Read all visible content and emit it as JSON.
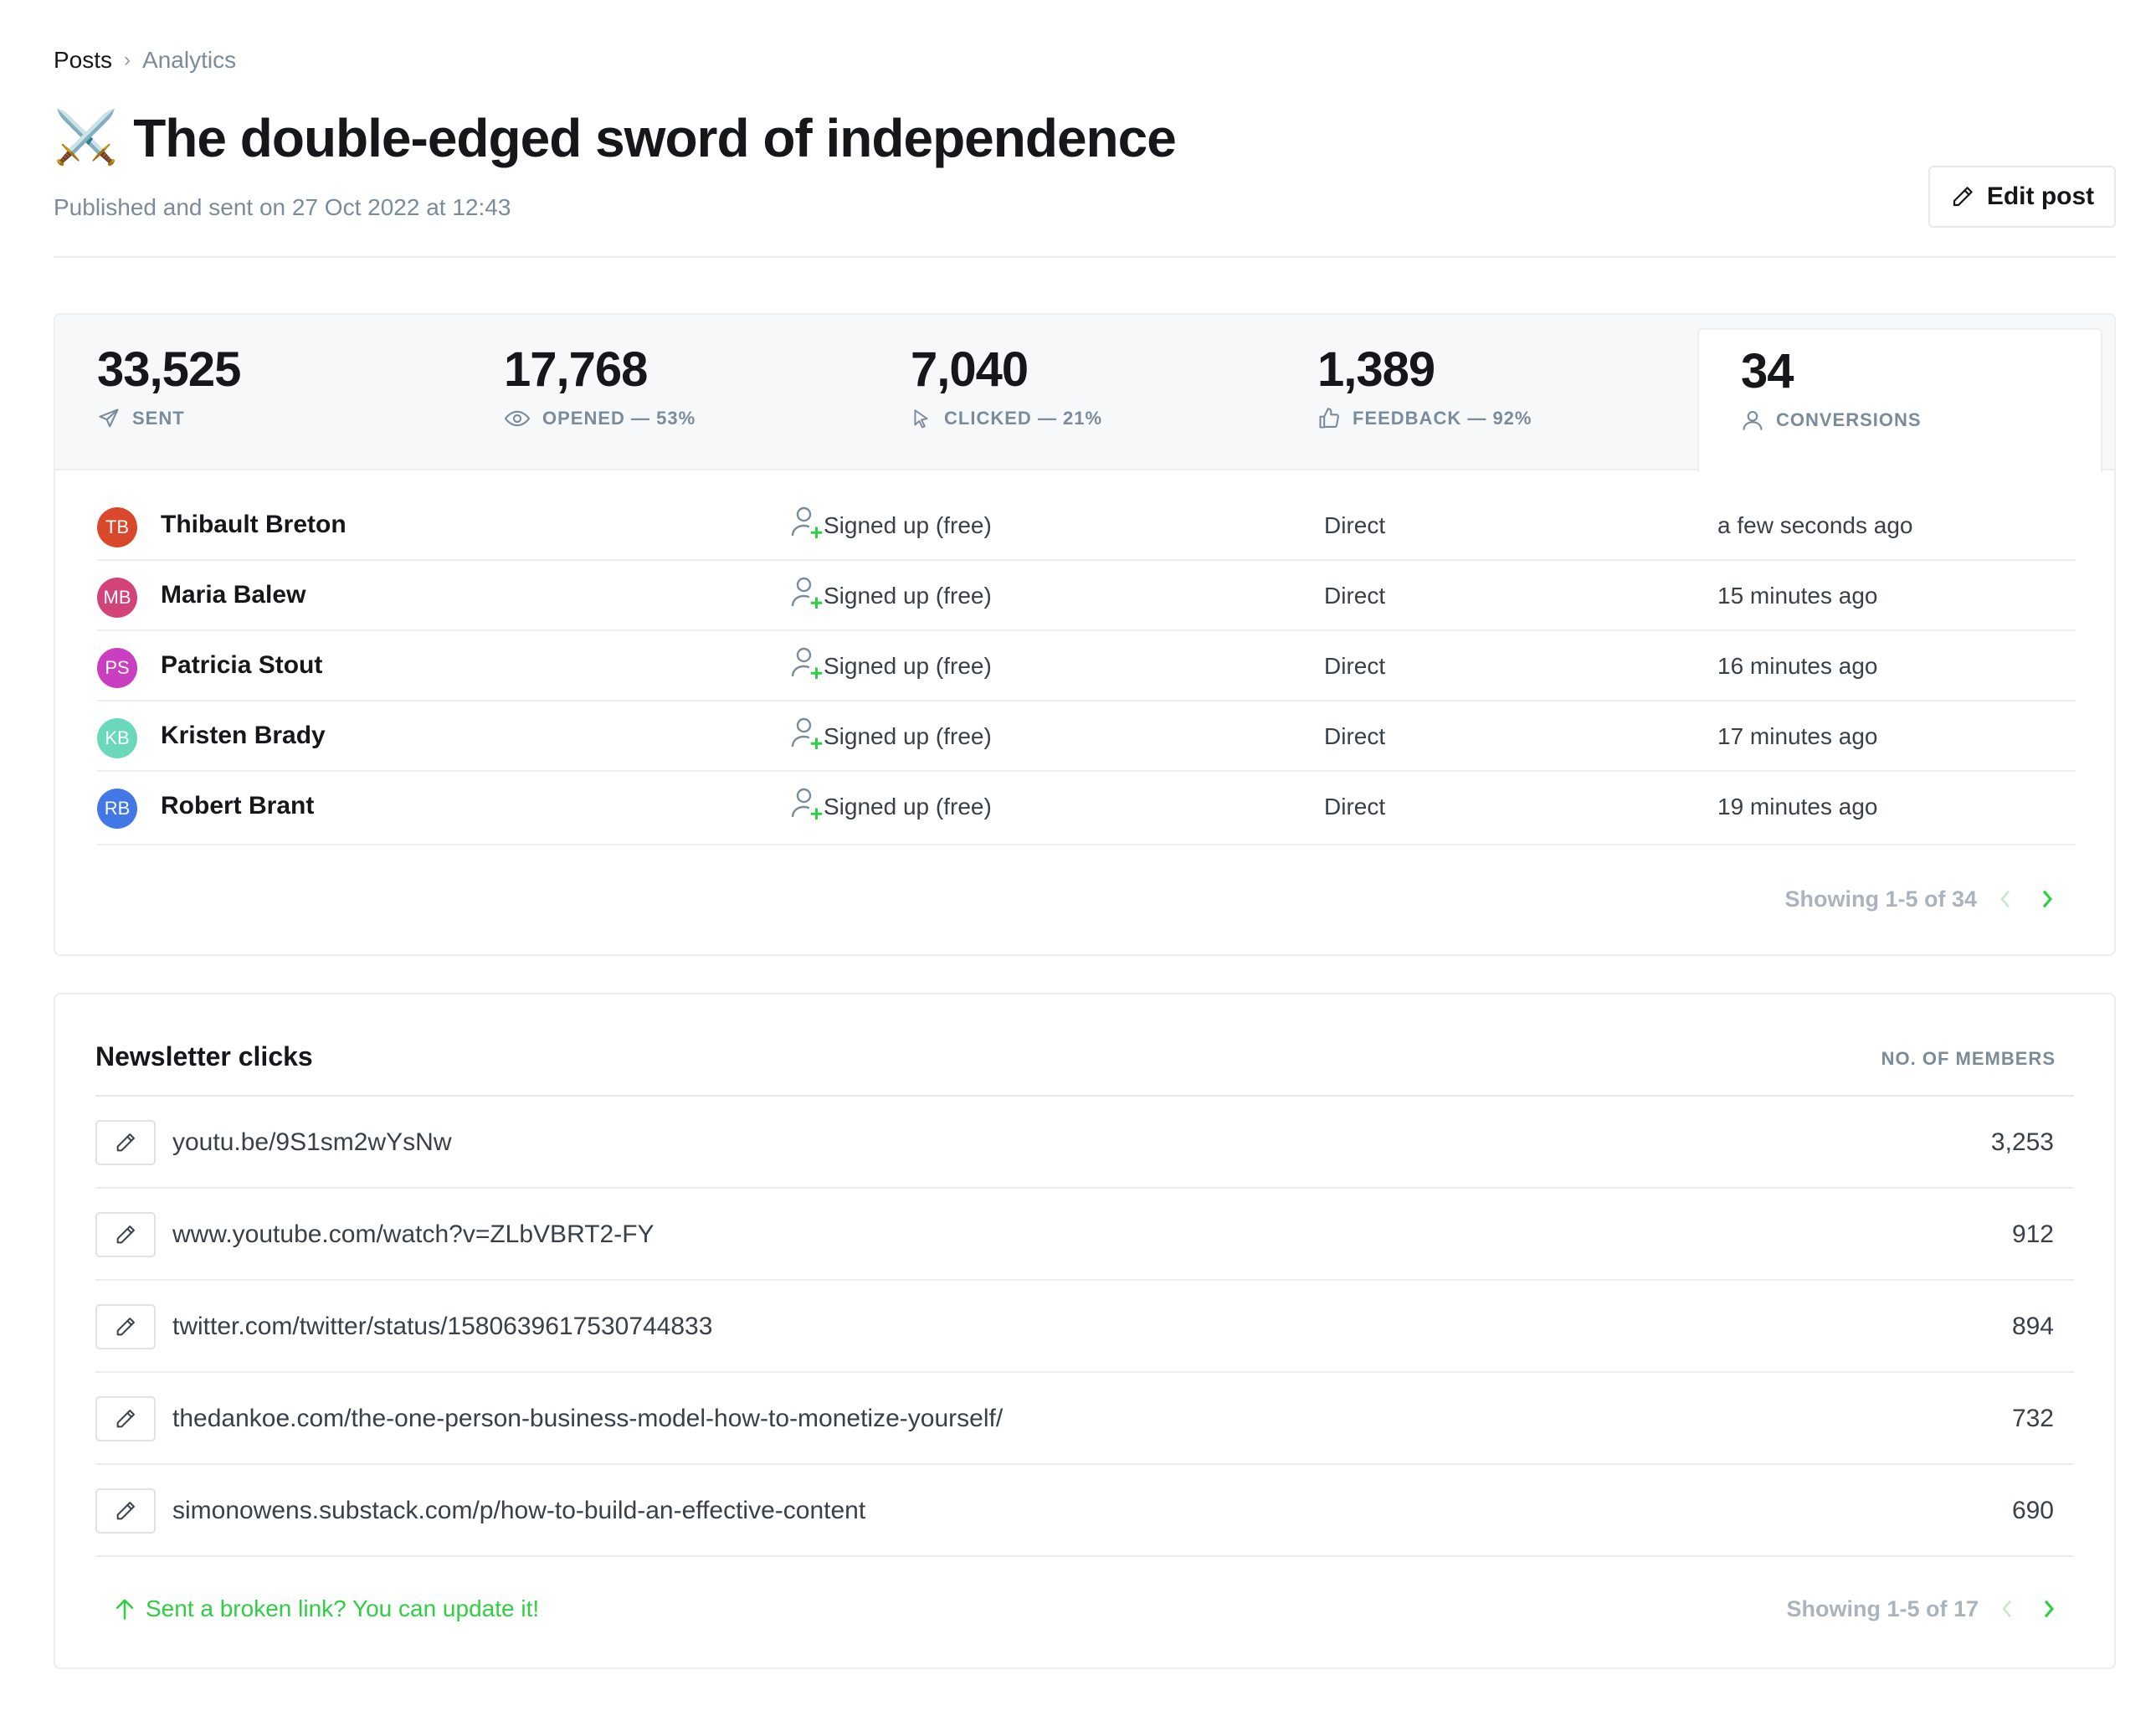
{
  "breadcrumb": {
    "parent": "Posts",
    "separator": "›",
    "current": "Analytics"
  },
  "post": {
    "emoji": "⚔️",
    "title": "The double-edged sword of independence",
    "subtitle": "Published and sent on 27 Oct 2022 at 12:43",
    "edit_label": "Edit post"
  },
  "stats": [
    {
      "value": "33,525",
      "label": "SENT",
      "icon": "send-icon"
    },
    {
      "value": "17,768",
      "label": "OPENED — 53%",
      "icon": "eye-icon"
    },
    {
      "value": "7,040",
      "label": "CLICKED — 21%",
      "icon": "cursor-icon"
    },
    {
      "value": "1,389",
      "label": "FEEDBACK — 92%",
      "icon": "thumbs-up-icon"
    },
    {
      "value": "34",
      "label": "CONVERSIONS",
      "icon": "user-icon",
      "active": true
    }
  ],
  "conversions": {
    "rows": [
      {
        "initials": "TB",
        "name": "Thibault Breton",
        "type": "Signed up (free)",
        "source": "Direct",
        "time": "a few seconds ago",
        "color": "#d9482b"
      },
      {
        "initials": "MB",
        "name": "Maria Balew",
        "type": "Signed up (free)",
        "source": "Direct",
        "time": "15 minutes ago",
        "color": "#d2437a"
      },
      {
        "initials": "PS",
        "name": "Patricia Stout",
        "type": "Signed up (free)",
        "source": "Direct",
        "time": "16 minutes ago",
        "color": "#c93fbf"
      },
      {
        "initials": "KB",
        "name": "Kristen Brady",
        "type": "Signed up (free)",
        "source": "Direct",
        "time": "17 minutes ago",
        "color": "#6ad8bb"
      },
      {
        "initials": "RB",
        "name": "Robert Brant",
        "type": "Signed up (free)",
        "source": "Direct",
        "time": "19 minutes ago",
        "color": "#4277e6"
      }
    ],
    "pagination": "Showing 1-5 of 34"
  },
  "clicks": {
    "title": "Newsletter clicks",
    "column_label": "NO. OF MEMBERS",
    "rows": [
      {
        "url": "youtu.be/9S1sm2wYsNw",
        "count": "3,253"
      },
      {
        "url": "www.youtube.com/watch?v=ZLbVBRT2-FY",
        "count": "912"
      },
      {
        "url": "twitter.com/twitter/status/1580639617530744833",
        "count": "894"
      },
      {
        "url": "thedankoe.com/the-one-person-business-model-how-to-monetize-yourself/",
        "count": "732"
      },
      {
        "url": "simonowens.substack.com/p/how-to-build-an-effective-content",
        "count": "690"
      }
    ],
    "broken_link_text": "Sent a broken link? You can update it!",
    "pagination": "Showing 1-5 of 17"
  },
  "colors": {
    "accent_green": "#30cf43",
    "text_muted": "#7c8b9a",
    "border": "#eceef0"
  }
}
